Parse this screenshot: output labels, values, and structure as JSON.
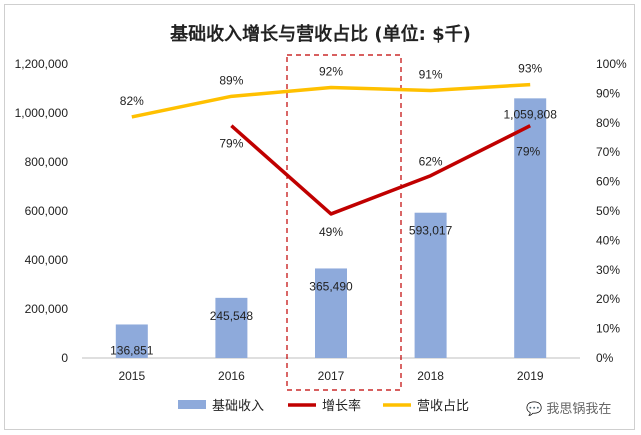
{
  "chart_data": {
    "type": "bar",
    "title": "基础收入增长与营收占比 (单位: $千)",
    "categories": [
      "2015",
      "2016",
      "2017",
      "2018",
      "2019"
    ],
    "series": [
      {
        "name": "基础收入",
        "type": "bar",
        "axis": "left",
        "color": "#8eaadb",
        "values": [
          136851,
          245548,
          365490,
          593017,
          1059808
        ],
        "labels": [
          "136,851",
          "245,548",
          "365,490",
          "593,017",
          "1,059,808"
        ]
      },
      {
        "name": "增长率",
        "type": "line",
        "axis": "right",
        "color": "#c00000",
        "values": [
          null,
          0.79,
          0.49,
          0.62,
          0.79
        ],
        "labels": [
          "",
          "79%",
          "49%",
          "62%",
          "79%"
        ]
      },
      {
        "name": "营收占比",
        "type": "line",
        "axis": "right",
        "color": "#ffc000",
        "values": [
          0.82,
          0.89,
          0.92,
          0.91,
          0.93
        ],
        "labels": [
          "82%",
          "89%",
          "92%",
          "91%",
          "93%"
        ]
      }
    ],
    "ylim_left": [
      0,
      1200000
    ],
    "ylim_right": [
      0,
      1
    ],
    "yticks_left": [
      "0",
      "200,000",
      "400,000",
      "600,000",
      "800,000",
      "1,000,000",
      "1,200,000"
    ],
    "yticks_right": [
      "0%",
      "10%",
      "20%",
      "30%",
      "40%",
      "50%",
      "60%",
      "70%",
      "80%",
      "90%",
      "100%"
    ],
    "highlight_category": "2017",
    "grid": false,
    "legend_position": "bottom"
  },
  "watermark": "我思锅我在"
}
